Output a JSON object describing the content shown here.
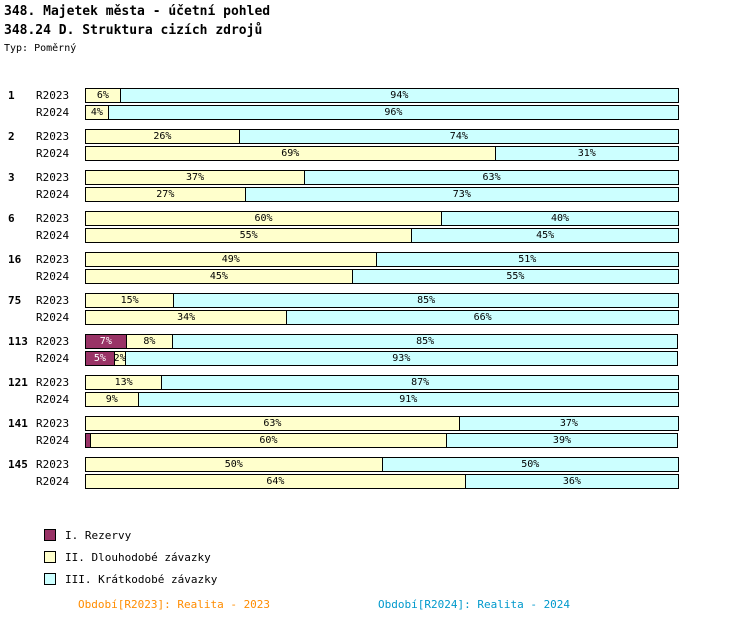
{
  "title": "348. Majetek města - účetní pohled",
  "subtitle": "348.24 D. Struktura cizích zdrojů",
  "type_label": "Typ: Poměrný",
  "chart_data": {
    "type": "bar",
    "orientation": "horizontal",
    "stacked": true,
    "unit": "%",
    "xlim": [
      0,
      100
    ],
    "label_min": 2,
    "grid": false,
    "legend_position": "bottom-left",
    "series_names": [
      "I. Rezervy",
      "II. Dlouhodobé závazky",
      "III. Krátkodobé závazky"
    ],
    "series_colors": [
      "#993366",
      "#FFFFCC",
      "#CCFFFF"
    ],
    "series_text_colors": [
      "#FFFFFF",
      "#000000",
      "#000000"
    ],
    "groups": [
      {
        "label": "1",
        "rows": [
          {
            "label": "R2023",
            "values": [
              0,
              6,
              94
            ]
          },
          {
            "label": "R2024",
            "values": [
              0,
              4,
              96
            ]
          }
        ]
      },
      {
        "label": "2",
        "rows": [
          {
            "label": "R2023",
            "values": [
              0,
              26,
              74
            ]
          },
          {
            "label": "R2024",
            "values": [
              0,
              69,
              31
            ]
          }
        ]
      },
      {
        "label": "3",
        "rows": [
          {
            "label": "R2023",
            "values": [
              0,
              37,
              63
            ]
          },
          {
            "label": "R2024",
            "values": [
              0,
              27,
              73
            ]
          }
        ]
      },
      {
        "label": "6",
        "rows": [
          {
            "label": "R2023",
            "values": [
              0,
              60,
              40
            ]
          },
          {
            "label": "R2024",
            "values": [
              0,
              55,
              45
            ]
          }
        ]
      },
      {
        "label": "16",
        "rows": [
          {
            "label": "R2023",
            "values": [
              0,
              49,
              51
            ]
          },
          {
            "label": "R2024",
            "values": [
              0,
              45,
              55
            ]
          }
        ]
      },
      {
        "label": "75",
        "rows": [
          {
            "label": "R2023",
            "values": [
              0,
              15,
              85
            ]
          },
          {
            "label": "R2024",
            "values": [
              0,
              34,
              66
            ]
          }
        ]
      },
      {
        "label": "113",
        "rows": [
          {
            "label": "R2023",
            "values": [
              7,
              8,
              85
            ]
          },
          {
            "label": "R2024",
            "values": [
              5,
              2,
              93
            ]
          }
        ]
      },
      {
        "label": "121",
        "rows": [
          {
            "label": "R2023",
            "values": [
              0,
              13,
              87
            ]
          },
          {
            "label": "R2024",
            "values": [
              0,
              9,
              91
            ]
          }
        ]
      },
      {
        "label": "141",
        "rows": [
          {
            "label": "R2023",
            "values": [
              0,
              63,
              37
            ]
          },
          {
            "label": "R2024",
            "values": [
              1,
              60,
              39
            ]
          }
        ]
      },
      {
        "label": "145",
        "rows": [
          {
            "label": "R2023",
            "values": [
              0,
              50,
              50
            ]
          },
          {
            "label": "R2024",
            "values": [
              0,
              64,
              36
            ]
          }
        ]
      }
    ]
  },
  "legend": [
    {
      "label": "I. Rezervy",
      "color": "#993366"
    },
    {
      "label": "II. Dlouhodobé závazky",
      "color": "#FFFFCC"
    },
    {
      "label": "III. Krátkodobé závazky",
      "color": "#CCFFFF"
    }
  ],
  "footer": {
    "left": {
      "text": "Období[R2023]: Realita - 2023",
      "color": "#FF8C00"
    },
    "right": {
      "text": "Období[R2024]: Realita - 2024",
      "color": "#0099CC"
    }
  }
}
